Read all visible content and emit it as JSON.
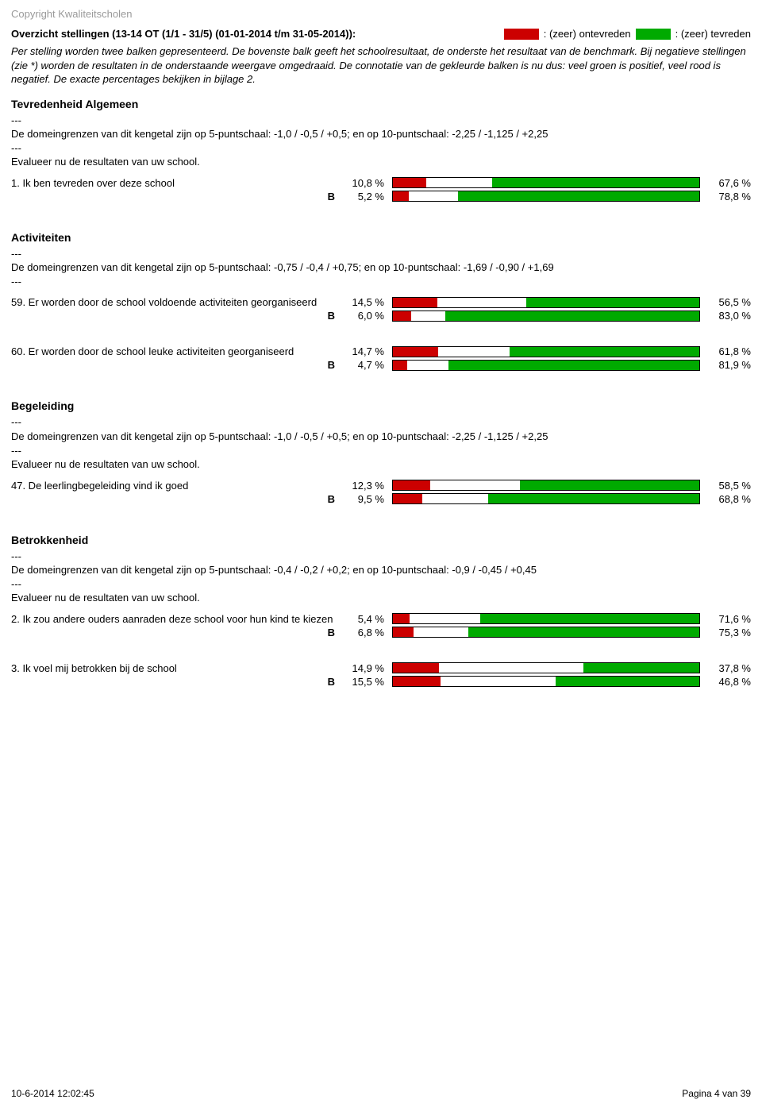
{
  "colors": {
    "red": "#cc0000",
    "green": "#00aa00",
    "background": "#ffffff",
    "copyright": "#9a9a9a",
    "border": "#000000"
  },
  "copyright": "Copyright Kwaliteitscholen",
  "header": {
    "title": "Overzicht stellingen (13-14 OT (1/1 - 31/5) (01-01-2014 t/m 31-05-2014)):",
    "legend_neg": ": (zeer) ontevreden",
    "legend_pos": ": (zeer) tevreden"
  },
  "intro": "Per stelling worden twee balken gepresenteerd. De bovenste balk geeft het schoolresultaat, de onderste het resultaat van de benchmark. Bij negatieve stellingen (zie *) worden de resultaten in de onderstaande weergave omgedraaid. De connotatie van de gekleurde balken is nu dus: veel groen is positief, veel rood is negatief. De exacte percentages bekijken in bijlage 2.",
  "benchmark_label": "B",
  "sections": [
    {
      "title": "Tevredenheid Algemeen",
      "desc": "---\nDe domeingrenzen van dit kengetal zijn op 5-puntschaal: -1,0 / -0,5 / +0,5; en op 10-puntschaal: -2,25 / -1,125 / +2,25\n---\nEvalueer nu de  resultaten van uw school.",
      "items": [
        {
          "label": "1. Ik ben tevreden over deze school",
          "rows": [
            {
              "left": "10,8 %",
              "red": 10.8,
              "green": 67.6,
              "right": "67,6 %"
            },
            {
              "left": "5,2 %",
              "red": 5.2,
              "green": 78.8,
              "right": "78,8 %"
            }
          ]
        }
      ]
    },
    {
      "title": "Activiteiten",
      "desc": "---\nDe domeingrenzen van dit kengetal zijn op 5-puntschaal: -0,75 / -0,4 / +0,75; en op 10-puntschaal: -1,69 / -0,90 / +1,69\n---",
      "items": [
        {
          "label": "59. Er worden door de school voldoende activiteiten georganiseerd",
          "rows": [
            {
              "left": "14,5 %",
              "red": 14.5,
              "green": 56.5,
              "right": "56,5 %"
            },
            {
              "left": "6,0 %",
              "red": 6.0,
              "green": 83.0,
              "right": "83,0 %"
            }
          ]
        },
        {
          "label": "60. Er worden door de school leuke activiteiten georganiseerd",
          "rows": [
            {
              "left": "14,7 %",
              "red": 14.7,
              "green": 61.8,
              "right": "61,8 %"
            },
            {
              "left": "4,7 %",
              "red": 4.7,
              "green": 81.9,
              "right": "81,9 %"
            }
          ]
        }
      ]
    },
    {
      "title": "Begeleiding",
      "desc": "---\nDe domeingrenzen van dit kengetal zijn op 5-puntschaal: -1,0 / -0,5 / +0,5; en op 10-puntschaal: -2,25 / -1,125 / +2,25\n---\nEvalueer nu de  resultaten van uw school.",
      "items": [
        {
          "label": "47. De leerlingbegeleiding vind ik goed",
          "rows": [
            {
              "left": "12,3 %",
              "red": 12.3,
              "green": 58.5,
              "right": "58,5 %"
            },
            {
              "left": "9,5 %",
              "red": 9.5,
              "green": 68.8,
              "right": "68,8 %"
            }
          ]
        }
      ]
    },
    {
      "title": "Betrokkenheid",
      "desc": "---\nDe domeingrenzen van dit kengetal zijn op 5-puntschaal: -0,4 / -0,2 / +0,2; en op 10-puntschaal: -0,9 / -0,45 / +0,45\n---\nEvalueer nu de resultaten van uw school.",
      "items": [
        {
          "label": "2. Ik zou andere ouders aanraden deze school voor hun kind te kiezen",
          "rows": [
            {
              "left": "5,4 %",
              "red": 5.4,
              "green": 71.6,
              "right": "71,6 %"
            },
            {
              "left": "6,8 %",
              "red": 6.8,
              "green": 75.3,
              "right": "75,3 %"
            }
          ]
        },
        {
          "label": "3. Ik voel mij betrokken bij de school",
          "rows": [
            {
              "left": "14,9 %",
              "red": 14.9,
              "green": 37.8,
              "right": "37,8 %"
            },
            {
              "left": "15,5 %",
              "red": 15.5,
              "green": 46.8,
              "right": "46,8 %"
            }
          ]
        }
      ]
    }
  ],
  "footer": {
    "left": "10-6-2014 12:02:45",
    "right": "Pagina 4 van 39"
  }
}
